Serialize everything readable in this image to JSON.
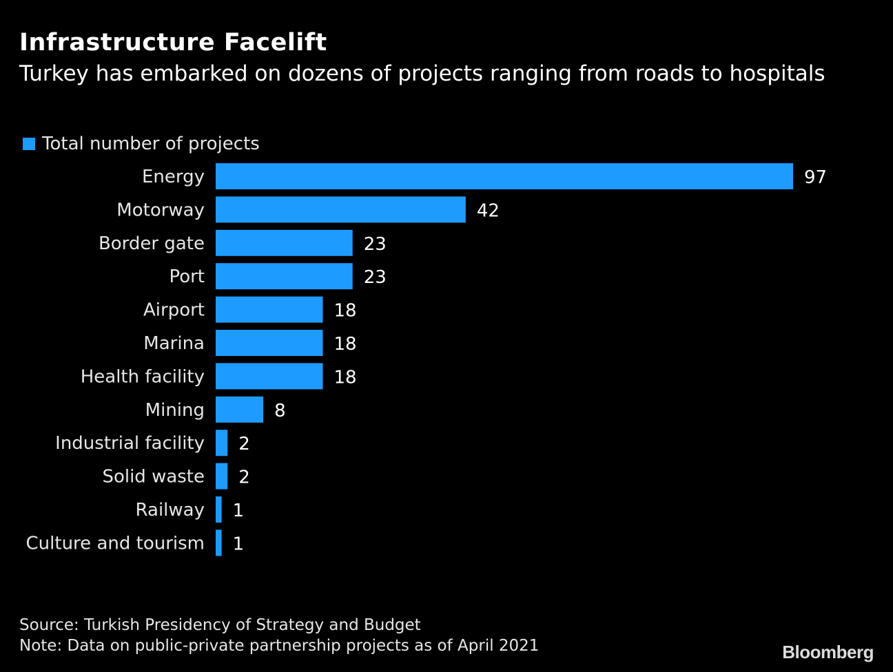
{
  "chart_data": {
    "type": "bar",
    "orientation": "horizontal",
    "title": "Infrastructure Facelift",
    "subtitle": "Turkey has embarked on dozens of projects ranging from roads to hospitals",
    "legend": [
      {
        "name": "Total number of projects",
        "color": "#1e9bff"
      }
    ],
    "categories": [
      "Energy",
      "Motorway",
      "Border gate",
      "Port",
      "Airport",
      "Marina",
      "Health facility",
      "Mining",
      "Industrial facility",
      "Solid waste",
      "Railway",
      "Culture and tourism"
    ],
    "values": [
      97,
      42,
      23,
      23,
      18,
      18,
      18,
      8,
      2,
      2,
      1,
      1
    ],
    "xlim": [
      0,
      97
    ],
    "grid": false,
    "bar_color": "#1e9bff"
  },
  "footer": {
    "source": "Source: Turkish Presidency of Strategy and Budget",
    "note": "Note: Data on public-private partnership projects as of April 2021",
    "brand": "Bloomberg"
  }
}
